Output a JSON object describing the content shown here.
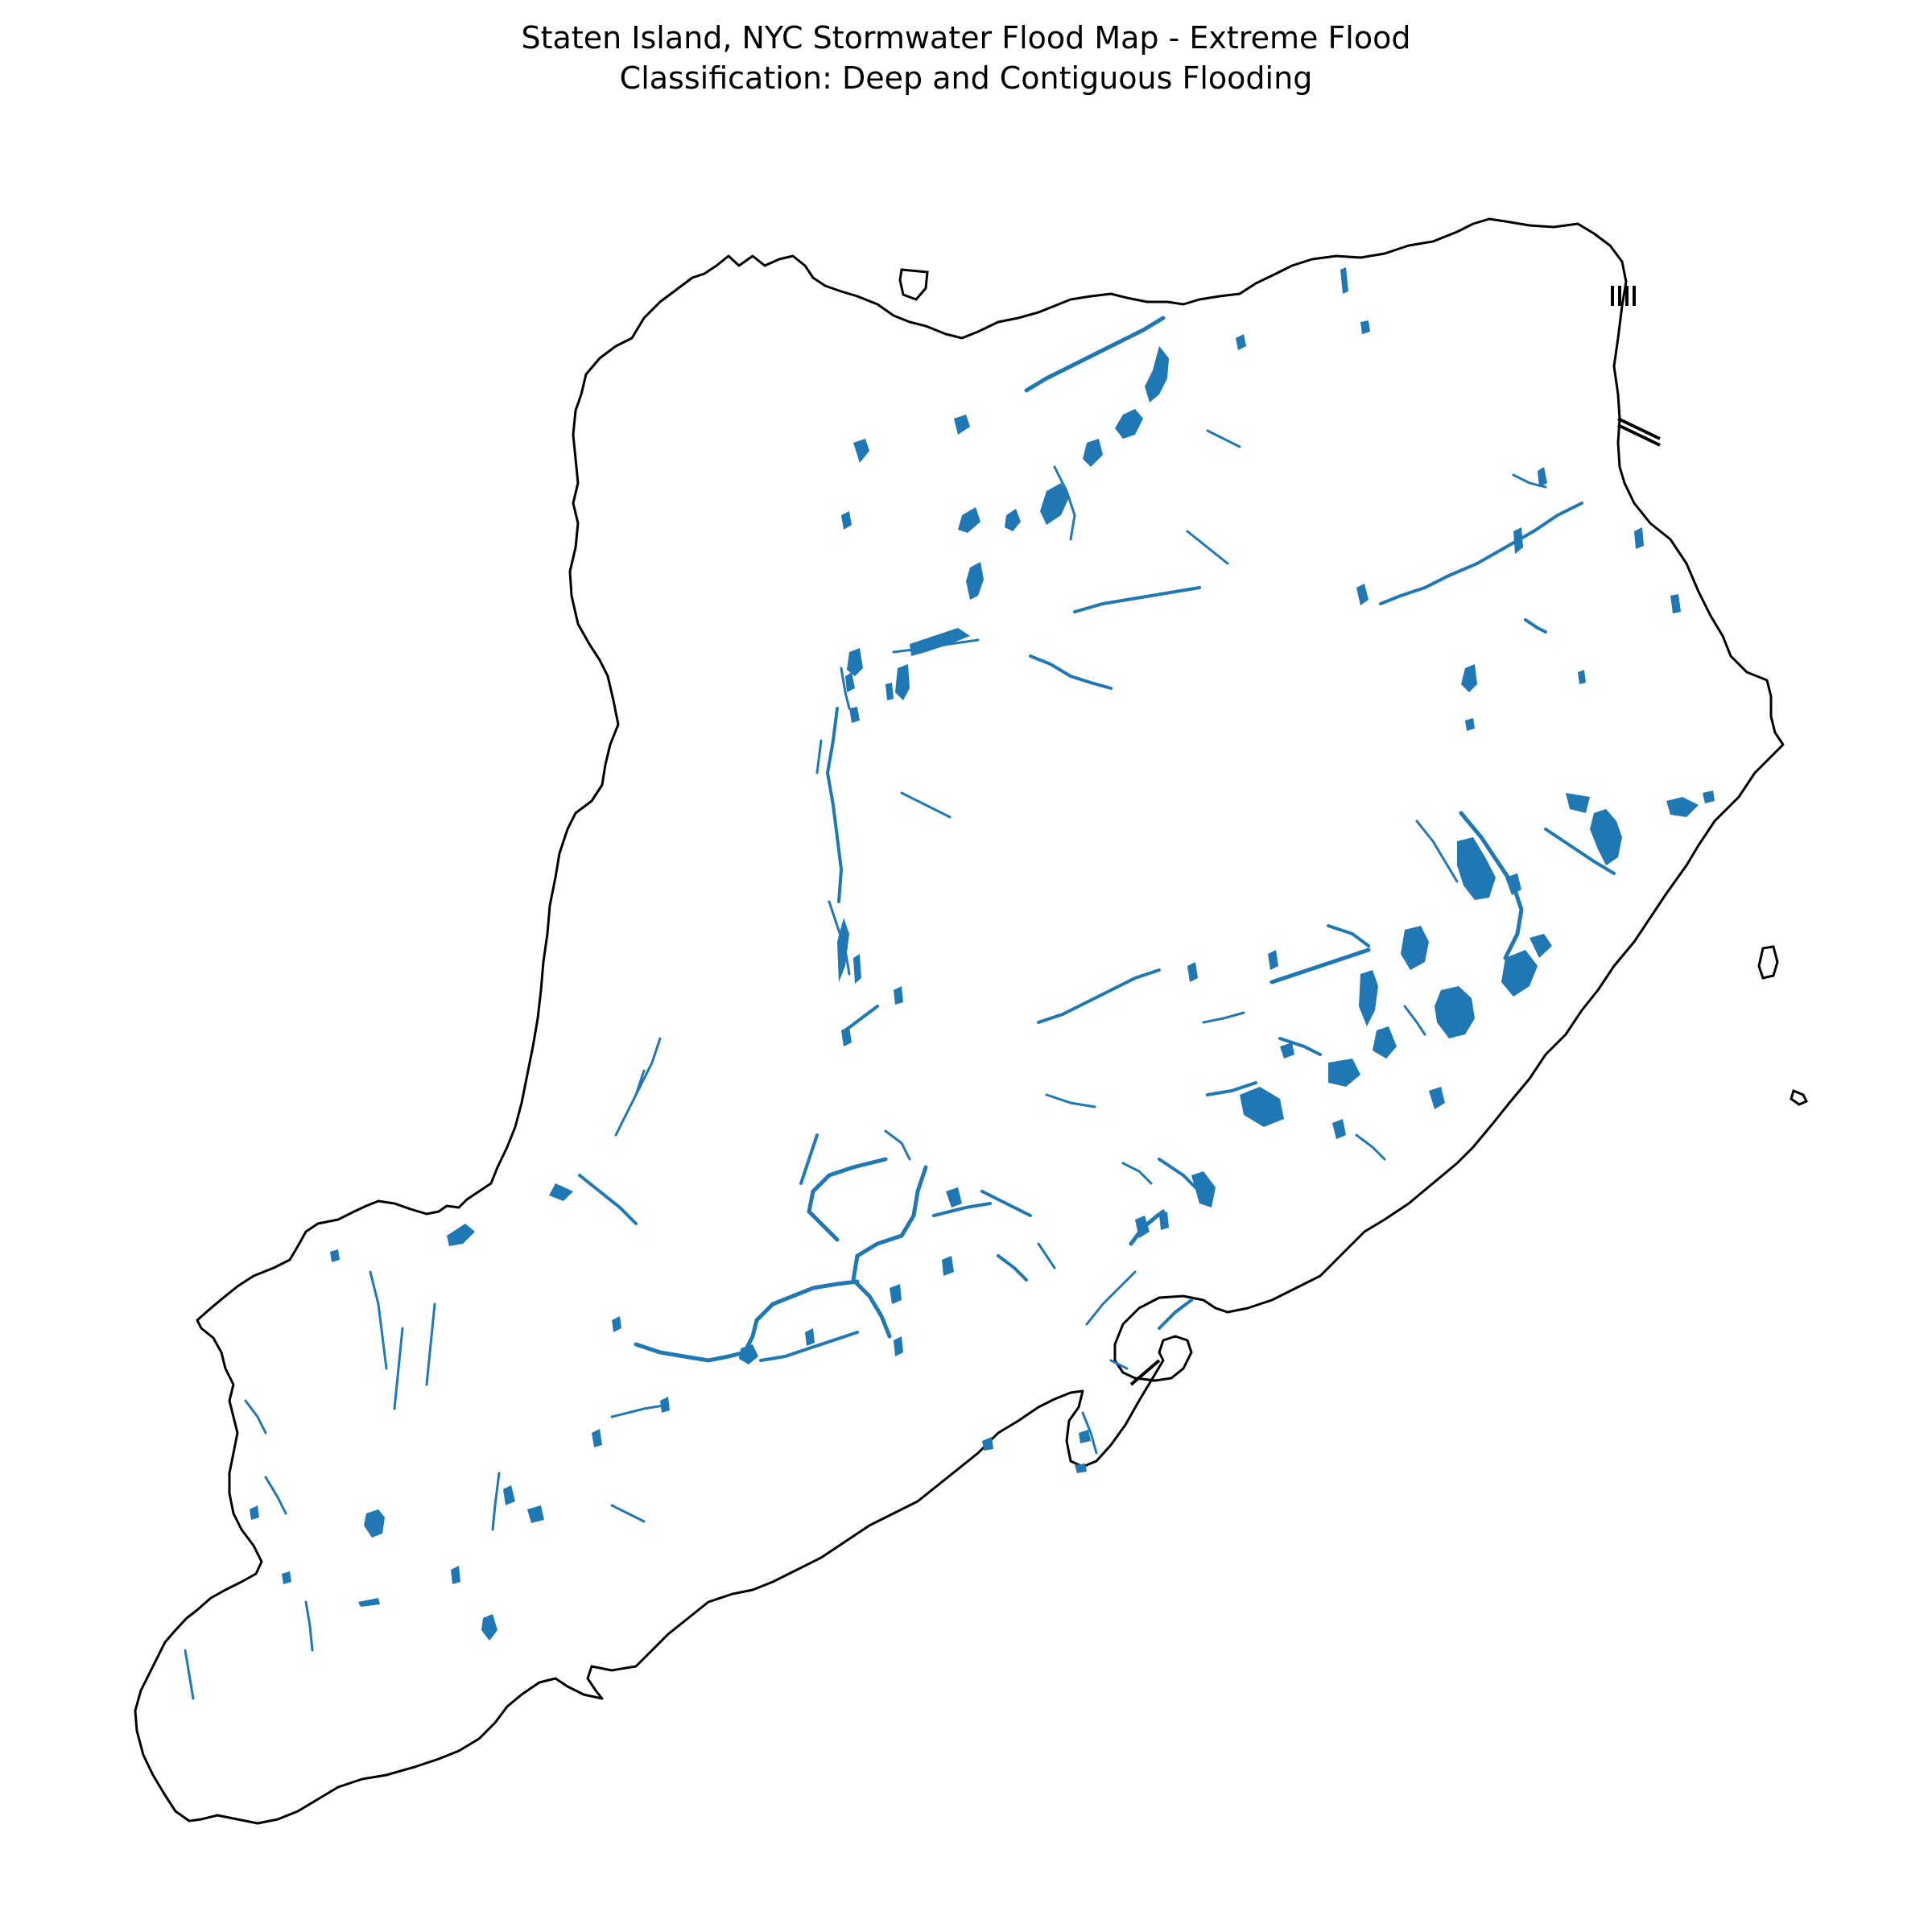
{
  "title": {
    "line1": "Staten Island, NYC Stormwater Flood Map - Extreme Flood",
    "line2": "Classification: Deep and Contiguous Flooding"
  },
  "colors": {
    "flood": "#1f77b4",
    "outline": "#000000",
    "background": "#ffffff"
  },
  "legend": null
}
